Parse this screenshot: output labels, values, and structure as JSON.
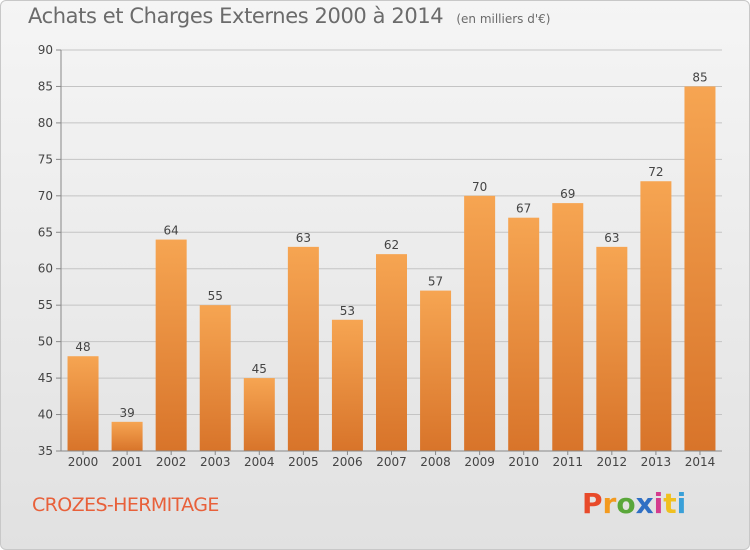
{
  "title": "Achats et Charges Externes 2000 à 2014",
  "unit": "(en milliers d'€)",
  "location": "CROZES-HERMITAGE",
  "brand": {
    "letters": [
      "P",
      "r",
      "o",
      "x",
      "i",
      "t",
      "i"
    ],
    "colors": [
      "#e84a2a",
      "#f39a1f",
      "#5aa73a",
      "#2f6fc4",
      "#d43c8e",
      "#f0c020",
      "#3aa0d8"
    ]
  },
  "colors": {
    "bar_light": "#f6a552",
    "bar_dark": "#d8742a",
    "grid": "#c4c4c4"
  },
  "chart_data": {
    "type": "bar",
    "title": "Achats et Charges Externes 2000 à 2014",
    "subtitle": "(en milliers d'€)",
    "categories": [
      "2000",
      "2001",
      "2002",
      "2003",
      "2004",
      "2005",
      "2006",
      "2007",
      "2008",
      "2009",
      "2010",
      "2011",
      "2012",
      "2013",
      "2014"
    ],
    "values": [
      48,
      39,
      64,
      55,
      45,
      63,
      53,
      62,
      57,
      70,
      67,
      69,
      63,
      72,
      85
    ],
    "ylim": [
      35,
      90
    ],
    "yticks": [
      35,
      40,
      45,
      50,
      55,
      60,
      65,
      70,
      75,
      80,
      85,
      90
    ],
    "grid": true,
    "data_labels": true
  }
}
